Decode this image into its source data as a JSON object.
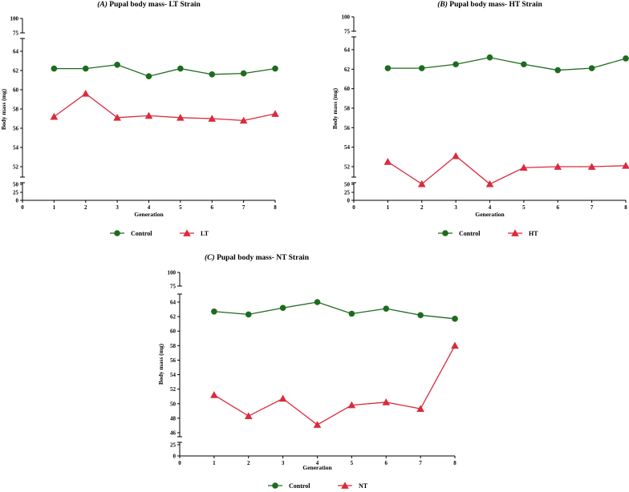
{
  "colors": {
    "control": "#1e6b1e",
    "treatment": "#dc2a3c",
    "axis": "#000000"
  },
  "chart_data": [
    {
      "type": "line",
      "title": "(A) Pupal body mass- LT Strain",
      "xlabel": "Generation",
      "ylabel": "Body mass (mg)",
      "x_ticks": [
        0,
        1,
        2,
        3,
        4,
        5,
        6,
        7,
        8
      ],
      "y_ticks": {
        "top": [
          "100",
          "75"
        ],
        "mid": [
          "64",
          "62",
          "60",
          "58",
          "56",
          "54",
          "52"
        ],
        "bottom": [
          "50",
          "25",
          "0"
        ]
      },
      "x": [
        1,
        2,
        3,
        4,
        5,
        6,
        7,
        8
      ],
      "series": [
        {
          "name": "Control",
          "marker": "circle",
          "values": [
            62.2,
            62.2,
            62.6,
            61.4,
            62.2,
            61.6,
            61.7,
            62.2
          ]
        },
        {
          "name": "LT",
          "marker": "triangle",
          "values": [
            57.2,
            59.6,
            57.1,
            57.3,
            57.1,
            57.0,
            56.8,
            57.5
          ]
        }
      ]
    },
    {
      "type": "line",
      "title": "(B) Pupal body mass- HT Strain",
      "xlabel": "Generation",
      "ylabel": "Body mass (mg)",
      "x_ticks": [
        0,
        1,
        2,
        3,
        4,
        5,
        6,
        7,
        8
      ],
      "y_ticks": {
        "top": [
          "100",
          "75"
        ],
        "mid": [
          "64",
          "62",
          "60",
          "58",
          "56",
          "54",
          "52"
        ],
        "bottom": [
          "50",
          "25",
          "0"
        ]
      },
      "x": [
        1,
        2,
        3,
        4,
        5,
        6,
        7,
        8
      ],
      "series": [
        {
          "name": "Control",
          "marker": "circle",
          "values": [
            62.1,
            62.1,
            62.5,
            63.2,
            62.5,
            61.9,
            62.1,
            63.1
          ]
        },
        {
          "name": "HT",
          "marker": "triangle",
          "values": [
            52.5,
            51.0,
            53.1,
            50.8,
            51.9,
            52.0,
            52.0,
            52.1
          ]
        }
      ]
    },
    {
      "type": "line",
      "title": "(C) Pupal body mass- NT Strain",
      "xlabel": "Generation",
      "ylabel": "Body mass (mg)",
      "x_ticks": [
        0,
        1,
        2,
        3,
        4,
        5,
        6,
        7,
        8
      ],
      "y_ticks": {
        "top": [
          "100",
          "75"
        ],
        "mid": [
          "64",
          "62",
          "60",
          "58",
          "56",
          "54",
          "52",
          "50",
          "48",
          "46"
        ],
        "bottom": [
          "25",
          "0"
        ]
      },
      "x": [
        1,
        2,
        3,
        4,
        5,
        6,
        7,
        8
      ],
      "series": [
        {
          "name": "Control",
          "marker": "circle",
          "values": [
            62.7,
            62.3,
            63.2,
            64.0,
            62.4,
            63.1,
            62.2,
            61.7
          ]
        },
        {
          "name": "NT",
          "marker": "triangle",
          "values": [
            51.2,
            48.3,
            50.7,
            47.1,
            49.8,
            50.2,
            49.3,
            58.0
          ]
        }
      ]
    }
  ]
}
